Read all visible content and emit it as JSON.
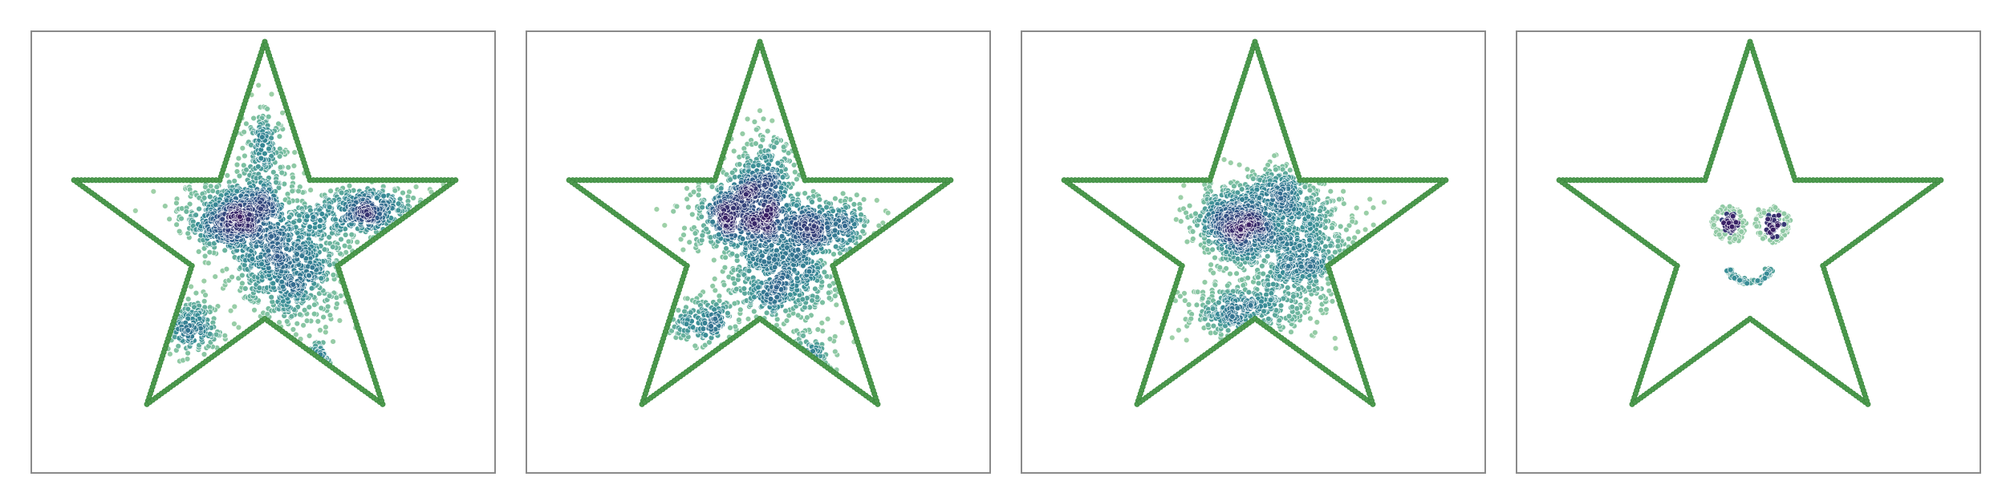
{
  "chart_data": [
    {
      "type": "scatter",
      "axes_visible": false,
      "grid": false,
      "legend": "none",
      "boundary_color": "#3b8a3e",
      "colormap": "viridis-dense",
      "star": {
        "outer_radius": 1.0,
        "inner_radius": 0.382,
        "center": [
          0,
          0
        ]
      },
      "density_clusters": [
        {
          "cx": -0.12,
          "cy": 0.12,
          "sx": 0.15,
          "sy": 0.1,
          "n": 700
        },
        {
          "cx": 0.14,
          "cy": -0.15,
          "sx": 0.14,
          "sy": 0.14,
          "n": 600
        },
        {
          "cx": 0.52,
          "cy": 0.15,
          "sx": 0.15,
          "sy": 0.07,
          "n": 380
        },
        {
          "cx": -0.4,
          "cy": -0.42,
          "sx": 0.1,
          "sy": 0.07,
          "n": 170
        },
        {
          "cx": 0.0,
          "cy": 0.45,
          "sx": 0.06,
          "sy": 0.15,
          "n": 200
        },
        {
          "cx": 0.26,
          "cy": -0.62,
          "sx": 0.04,
          "sy": 0.05,
          "n": 40
        }
      ]
    },
    {
      "type": "scatter",
      "axes_visible": false,
      "grid": false,
      "legend": "none",
      "boundary_color": "#3b8a3e",
      "colormap": "viridis-dense",
      "star": {
        "outer_radius": 1.0,
        "inner_radius": 0.382,
        "center": [
          0,
          0
        ]
      },
      "density_clusters": [
        {
          "cx": -0.08,
          "cy": 0.15,
          "sx": 0.14,
          "sy": 0.1,
          "n": 650
        },
        {
          "cx": 0.12,
          "cy": -0.16,
          "sx": 0.14,
          "sy": 0.14,
          "n": 550
        },
        {
          "cx": 0.32,
          "cy": 0.08,
          "sx": 0.14,
          "sy": 0.08,
          "n": 320
        },
        {
          "cx": -0.28,
          "cy": -0.4,
          "sx": 0.1,
          "sy": 0.07,
          "n": 170
        },
        {
          "cx": 0.03,
          "cy": 0.38,
          "sx": 0.08,
          "sy": 0.1,
          "n": 170
        },
        {
          "cx": 0.25,
          "cy": -0.58,
          "sx": 0.06,
          "sy": 0.06,
          "n": 50
        }
      ]
    },
    {
      "type": "scatter",
      "axes_visible": false,
      "grid": false,
      "legend": "none",
      "boundary_color": "#3b8a3e",
      "colormap": "viridis-dense",
      "star": {
        "outer_radius": 1.0,
        "inner_radius": 0.382,
        "center": [
          0,
          0
        ]
      },
      "density_clusters": [
        {
          "cx": -0.1,
          "cy": 0.1,
          "sx": 0.1,
          "sy": 0.09,
          "n": 550
        },
        {
          "cx": 0.2,
          "cy": -0.05,
          "sx": 0.16,
          "sy": 0.16,
          "n": 700
        },
        {
          "cx": -0.07,
          "cy": -0.35,
          "sx": 0.15,
          "sy": 0.08,
          "n": 330
        },
        {
          "cx": 0.15,
          "cy": 0.25,
          "sx": 0.1,
          "sy": 0.08,
          "n": 220
        }
      ]
    },
    {
      "type": "scatter",
      "axes_visible": false,
      "grid": false,
      "legend": "none",
      "boundary_color": "#3b8a3e",
      "colormap": "viridis-dense",
      "star": {
        "outer_radius": 1.0,
        "inner_radius": 0.382,
        "center": [
          0,
          0
        ]
      },
      "face": {
        "eyes": [
          {
            "cx": -0.1,
            "cy": 0.09
          },
          {
            "cx": 0.11,
            "cy": 0.09
          }
        ],
        "eye_ring_radius": 0.075,
        "eye_core": {
          "sx": 0.018,
          "sy": 0.022
        },
        "smile": {
          "cx": 0.0,
          "cy": -0.1,
          "rx": 0.11,
          "ry": 0.1,
          "start_deg": 200,
          "end_deg": 340
        }
      }
    }
  ]
}
